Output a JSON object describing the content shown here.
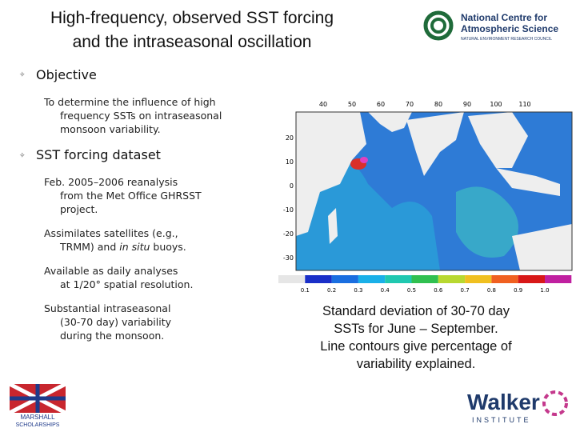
{
  "header": {
    "title_lines": [
      "High-frequency, observed SST forcing",
      "and the intraseasonal oscillation"
    ],
    "logo_top": {
      "lines": [
        "National Centre for",
        "Atmospheric Science"
      ],
      "subline": "NATURAL ENVIRONMENT RESEARCH COUNCIL"
    }
  },
  "bullets": [
    {
      "heading": "Objective",
      "items": [
        [
          "To determine the influence of high",
          "frequency SSTs on intraseasonal",
          "monsoon variability."
        ]
      ]
    },
    {
      "heading": "SST forcing dataset",
      "items": [
        [
          "Feb. 2005–2006 reanalysis",
          "from the Met Office GHRSST",
          "project."
        ],
        [
          "Assimilates satellites (e.g.,",
          "TRMM) and ",
          "in situ",
          " buoys."
        ],
        [
          "Available as daily analyses",
          "at 1/20° spatial resolution."
        ],
        [
          "Substantial intraseasonal",
          "(30-70 day) variability",
          "during the monsoon."
        ]
      ]
    }
  ],
  "map": {
    "lon_labels": [
      "40",
      "50",
      "60",
      "70",
      "80",
      "90",
      "100",
      "110"
    ],
    "lat_labels": [
      "20",
      "10",
      "0",
      "-10",
      "-20",
      "-30"
    ],
    "colorbar_labels": [
      "0.1",
      "0.2",
      "0.3",
      "0.4",
      "0.5",
      "0.6",
      "0.7",
      "0.8",
      "0.9",
      "1.0"
    ]
  },
  "caption_lines": [
    "Standard deviation of 30-70 day",
    "SSTs for June – September.",
    "Line contours give percentage of",
    "variability explained."
  ],
  "logos": {
    "marshall": [
      "MARSHALL",
      "SCHOLARSHIPS"
    ],
    "walker": {
      "name": "Walker",
      "sub": "INSTITUTE"
    }
  }
}
